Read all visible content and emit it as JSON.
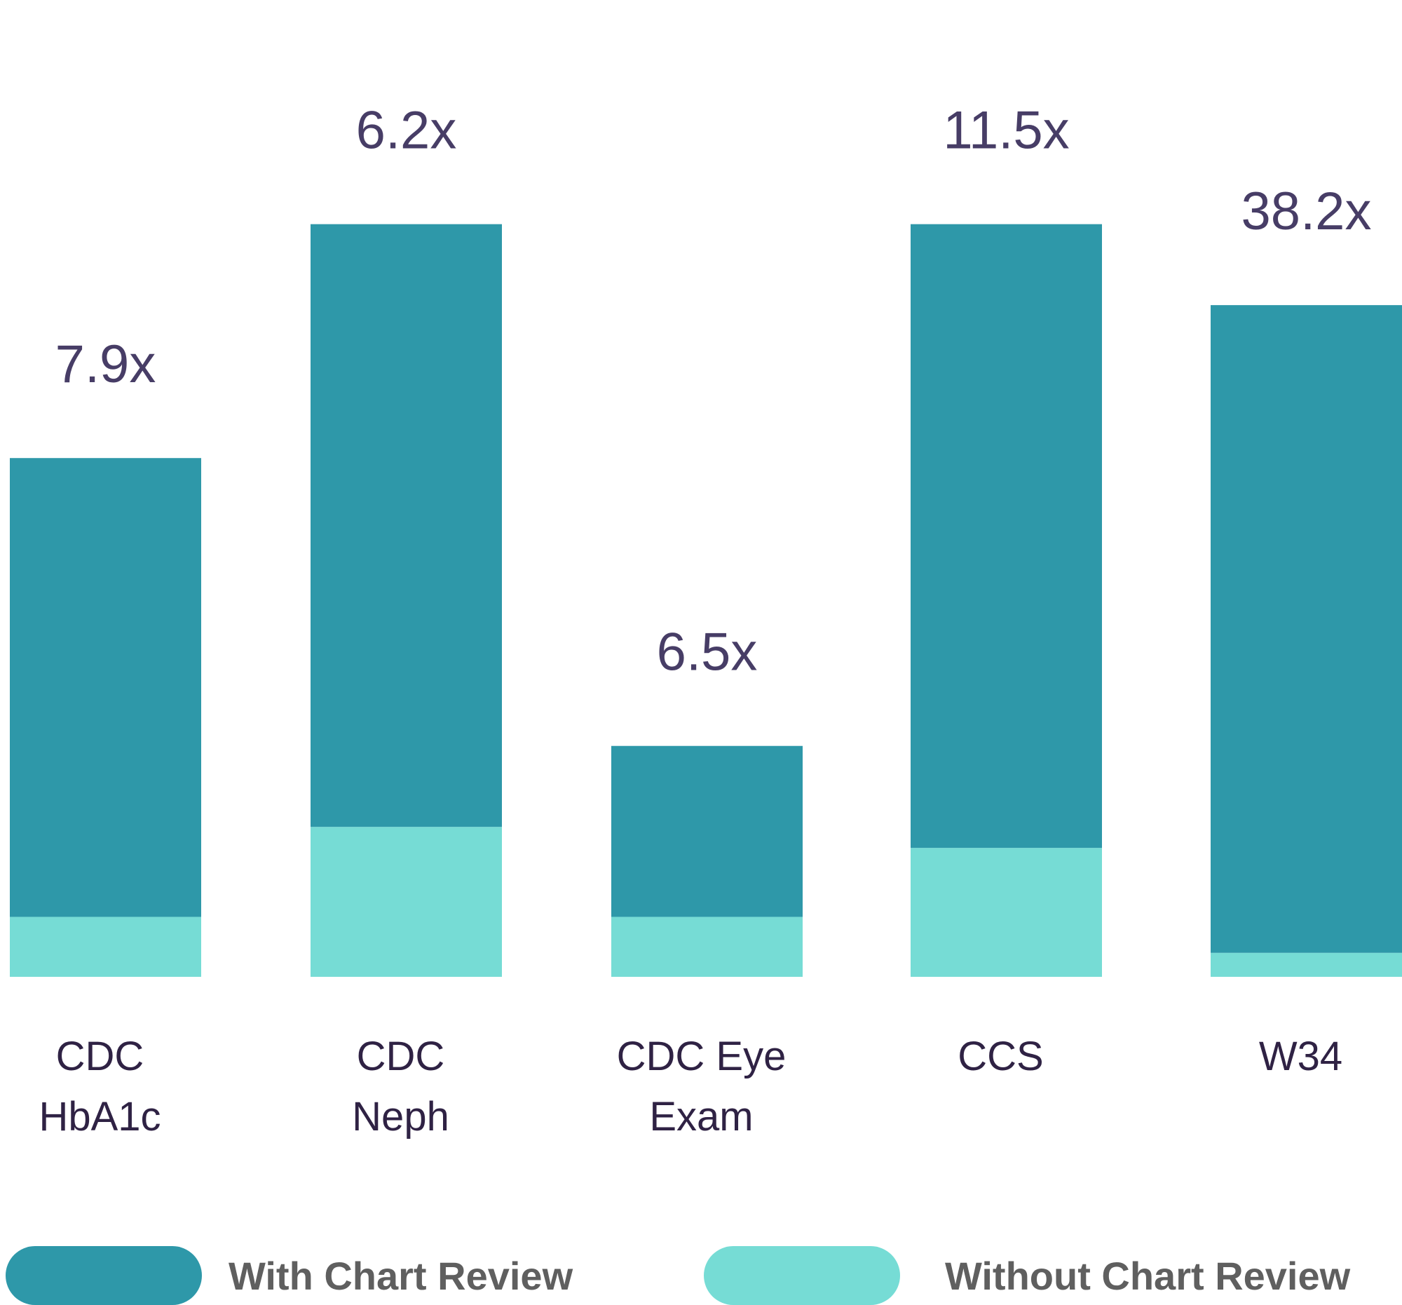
{
  "chart_data": {
    "type": "bar",
    "stacked": true,
    "categories": [
      [
        "CDC",
        "HbA1c"
      ],
      [
        "CDC",
        "Neph"
      ],
      [
        "CDC Eye",
        "Exam"
      ],
      [
        "CCS"
      ],
      [
        "W34"
      ]
    ],
    "series": [
      {
        "name": "Without Chart Review",
        "color": "#76dcd5",
        "values": [
          10,
          25,
          10,
          21.5,
          4
        ]
      },
      {
        "name": "With Chart Review",
        "color": "#2e98a9",
        "values": [
          76.5,
          100.5,
          28.5,
          104,
          108
        ]
      }
    ],
    "bar_labels": [
      "7.9x",
      "6.2x",
      "6.5x",
      "11.5x",
      "38.2x"
    ],
    "ylim": [
      0,
      143
    ],
    "grid": false,
    "legend": "bottom"
  },
  "legend": {
    "with_label": "With Chart Review",
    "without_label": "Without Chart Review",
    "with_color": "#2e98a9",
    "without_color": "#76dcd5"
  }
}
